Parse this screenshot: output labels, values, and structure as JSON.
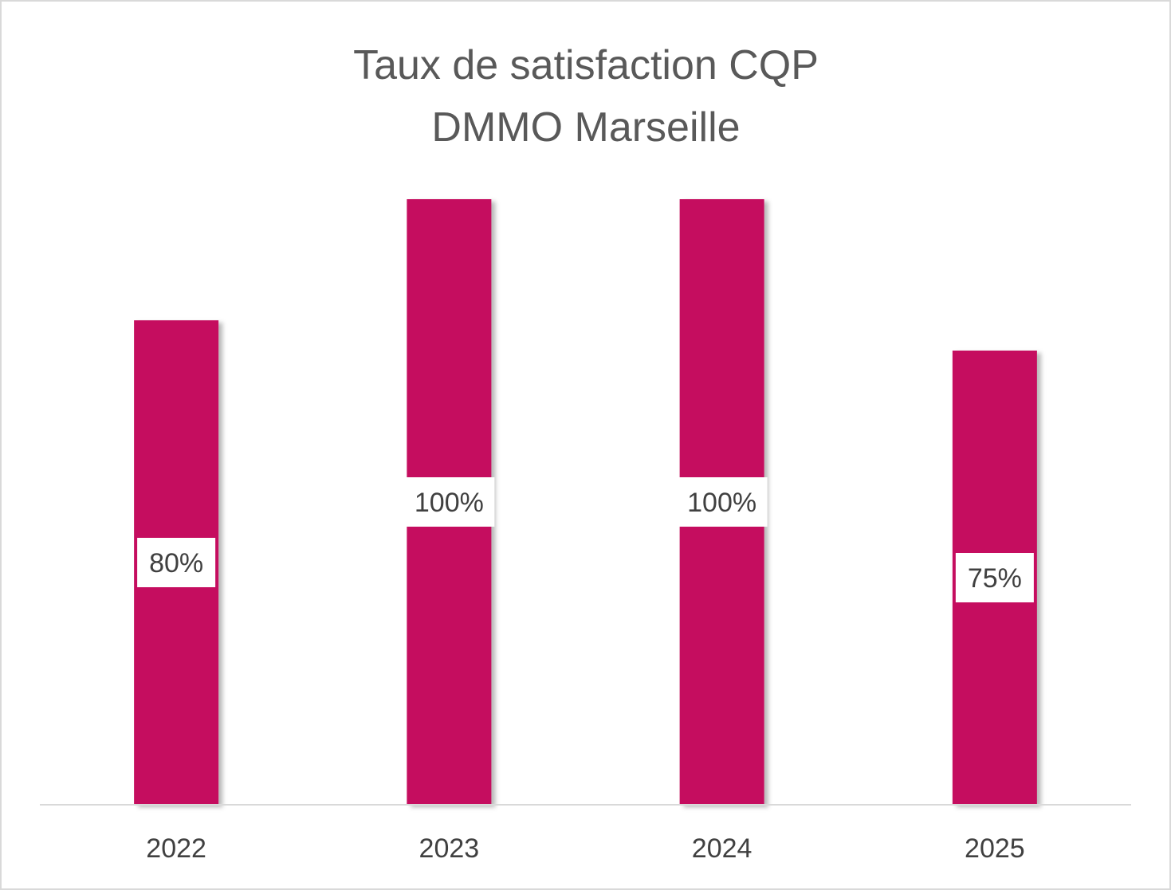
{
  "chart_data": {
    "type": "bar",
    "title_lines": [
      "Taux de satisfaction CQP",
      "DMMO Marseille"
    ],
    "categories": [
      "2022",
      "2023",
      "2024",
      "2025"
    ],
    "values": [
      80,
      100,
      100,
      75
    ],
    "data_labels": [
      "80%",
      "100%",
      "100%",
      "75%"
    ],
    "unit": "%",
    "ylim": [
      0,
      100
    ],
    "grid": false,
    "legend": "none",
    "y_axis_visible": false,
    "colors": {
      "bar": "#C50A5E",
      "label_box": "#ffffff",
      "text": "#404040",
      "title": "#595959",
      "axis": "#d9d9d9"
    }
  }
}
